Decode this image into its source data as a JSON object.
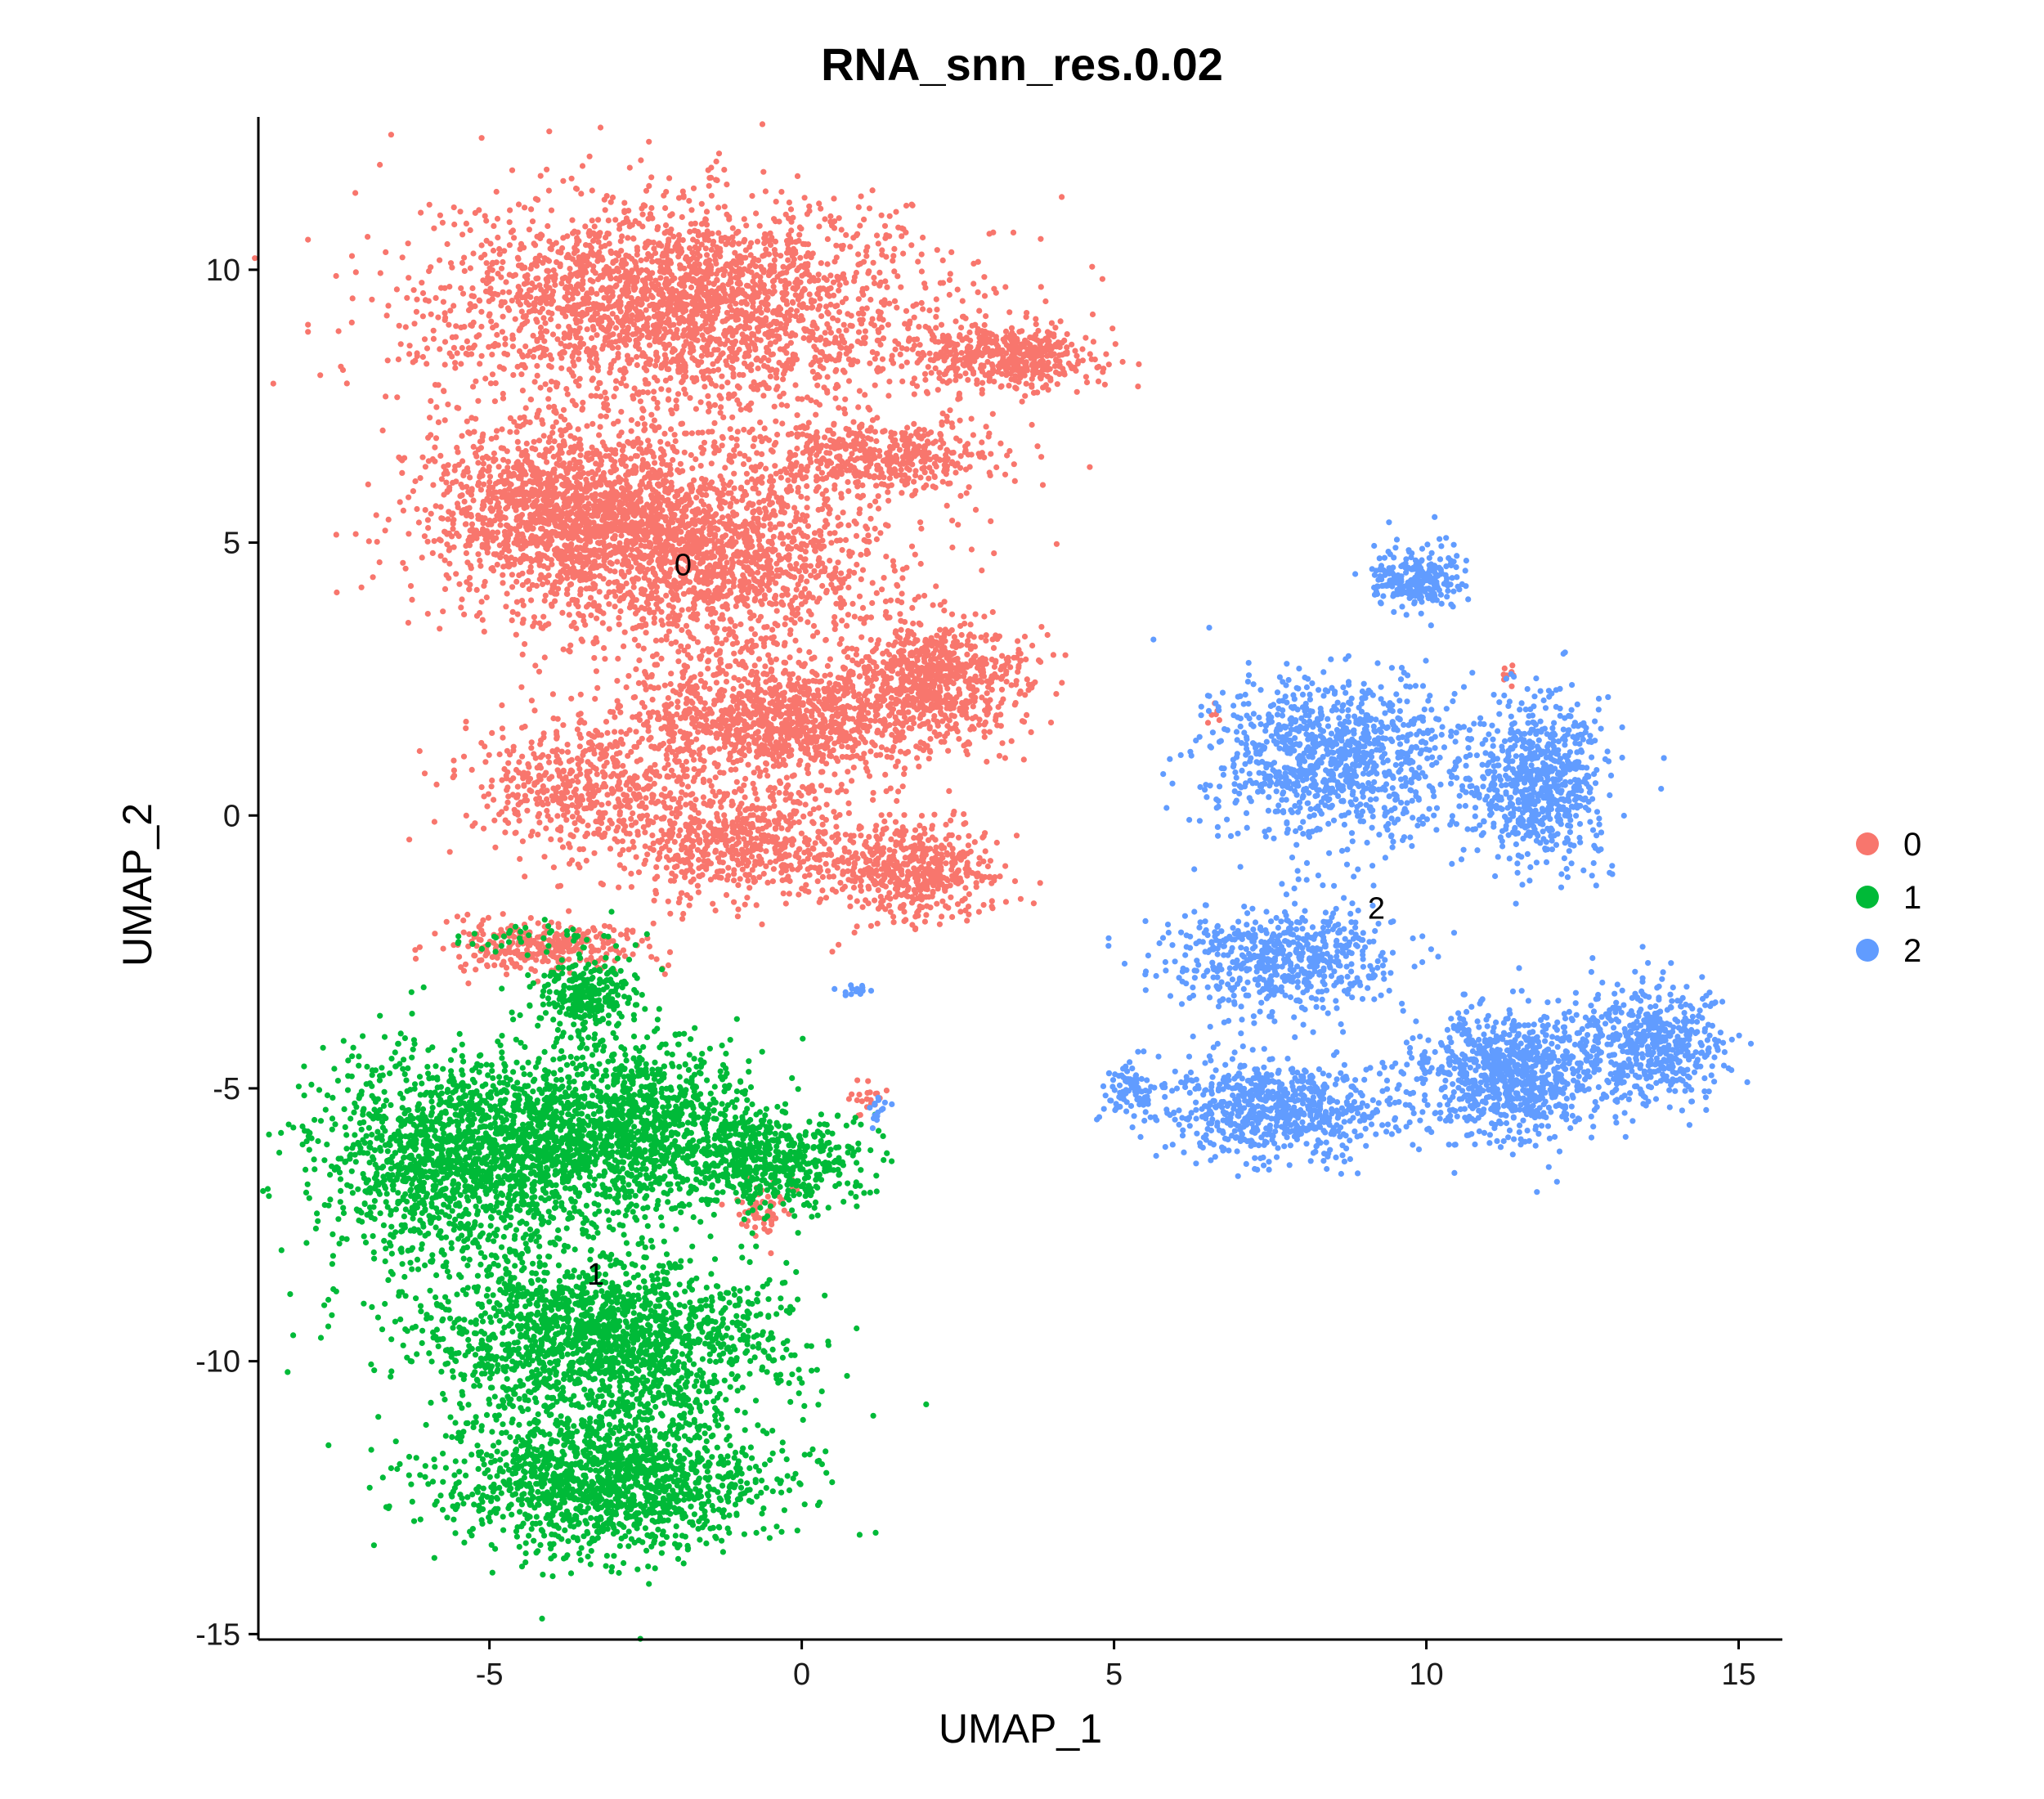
{
  "chart_data": {
    "type": "scatter",
    "title": "RNA_snn_res.0.02",
    "xlabel": "UMAP_1",
    "ylabel": "UMAP_2",
    "xlim": [
      -8.7,
      15.7
    ],
    "ylim": [
      -15.1,
      12.8
    ],
    "x_ticks": [
      -5,
      0,
      5,
      10,
      15
    ],
    "y_ticks": [
      -15,
      -10,
      -5,
      0,
      5,
      10
    ],
    "grid": false,
    "legend_position": "right",
    "series": [
      {
        "name": "0",
        "color": "#F8766D",
        "centroid": [
          -1.9,
          4.6
        ],
        "regions": [
          {
            "cx": -2.0,
            "cy": 9.4,
            "rx": 3.9,
            "ry": 1.9,
            "count": 2600
          },
          {
            "cx": -3.8,
            "cy": 5.6,
            "rx": 2.3,
            "ry": 1.6,
            "count": 1500
          },
          {
            "cx": -1.6,
            "cy": 4.8,
            "rx": 3.0,
            "ry": 1.8,
            "count": 1700
          },
          {
            "cx": 1.2,
            "cy": 6.6,
            "rx": 2.0,
            "ry": 0.7,
            "count": 500
          },
          {
            "cx": 3.2,
            "cy": 8.4,
            "rx": 1.5,
            "ry": 0.6,
            "count": 500
          },
          {
            "cx": 2.2,
            "cy": 2.5,
            "rx": 1.4,
            "ry": 1.1,
            "count": 700
          },
          {
            "cx": -0.3,
            "cy": 1.8,
            "rx": 2.4,
            "ry": 1.2,
            "count": 1200
          },
          {
            "cx": -3.4,
            "cy": 0.5,
            "rx": 1.9,
            "ry": 1.3,
            "count": 600
          },
          {
            "cx": -0.8,
            "cy": -0.5,
            "rx": 1.8,
            "ry": 1.0,
            "count": 600
          },
          {
            "cx": 1.8,
            "cy": -1.0,
            "rx": 1.4,
            "ry": 0.9,
            "count": 500
          },
          {
            "cx": -4.2,
            "cy": -2.4,
            "rx": 1.6,
            "ry": 0.5,
            "count": 300
          },
          {
            "cx": 11.3,
            "cy": 2.6,
            "rx": 0.2,
            "ry": 0.2,
            "count": 8
          },
          {
            "cx": 6.6,
            "cy": 1.8,
            "rx": 0.2,
            "ry": 0.2,
            "count": 6
          },
          {
            "cx": -0.6,
            "cy": -7.2,
            "rx": 0.5,
            "ry": 0.5,
            "count": 60
          },
          {
            "cx": 1.0,
            "cy": -5.2,
            "rx": 0.3,
            "ry": 0.3,
            "count": 20
          }
        ]
      },
      {
        "name": "1",
        "color": "#00BA38",
        "centroid": [
          -3.3,
          -8.4
        ],
        "regions": [
          {
            "cx": -5.5,
            "cy": -6.3,
            "rx": 2.2,
            "ry": 1.9,
            "count": 1600
          },
          {
            "cx": -2.8,
            "cy": -5.7,
            "rx": 2.0,
            "ry": 1.6,
            "count": 1300
          },
          {
            "cx": -0.5,
            "cy": -6.3,
            "rx": 1.5,
            "ry": 0.9,
            "count": 500
          },
          {
            "cx": -3.2,
            "cy": -9.6,
            "rx": 2.7,
            "ry": 1.6,
            "count": 1800
          },
          {
            "cx": -3.0,
            "cy": -12.2,
            "rx": 2.6,
            "ry": 1.3,
            "count": 1500
          },
          {
            "cx": -3.4,
            "cy": -3.3,
            "rx": 0.8,
            "ry": 0.7,
            "count": 250
          },
          {
            "cx": -4.2,
            "cy": -2.2,
            "rx": 1.5,
            "ry": 0.3,
            "count": 40
          }
        ]
      },
      {
        "name": "2",
        "color": "#619CFF",
        "centroid": [
          9.2,
          -1.7
        ],
        "regions": [
          {
            "cx": 9.8,
            "cy": 4.3,
            "rx": 0.7,
            "ry": 0.6,
            "count": 250
          },
          {
            "cx": 8.6,
            "cy": 1.0,
            "rx": 2.1,
            "ry": 1.5,
            "count": 1000
          },
          {
            "cx": 11.8,
            "cy": 0.6,
            "rx": 1.1,
            "ry": 1.5,
            "count": 700
          },
          {
            "cx": 7.7,
            "cy": -2.6,
            "rx": 1.8,
            "ry": 1.0,
            "count": 600
          },
          {
            "cx": 7.6,
            "cy": -5.4,
            "rx": 1.8,
            "ry": 0.9,
            "count": 700
          },
          {
            "cx": 5.2,
            "cy": -5.0,
            "rx": 0.4,
            "ry": 0.6,
            "count": 80
          },
          {
            "cx": 11.4,
            "cy": -4.7,
            "rx": 1.6,
            "ry": 1.2,
            "count": 900
          },
          {
            "cx": 13.6,
            "cy": -4.2,
            "rx": 1.1,
            "ry": 1.1,
            "count": 500
          },
          {
            "cx": 0.8,
            "cy": -3.2,
            "rx": 0.4,
            "ry": 0.1,
            "count": 15
          },
          {
            "cx": 1.2,
            "cy": -5.4,
            "rx": 0.2,
            "ry": 0.3,
            "count": 15
          }
        ]
      }
    ]
  }
}
